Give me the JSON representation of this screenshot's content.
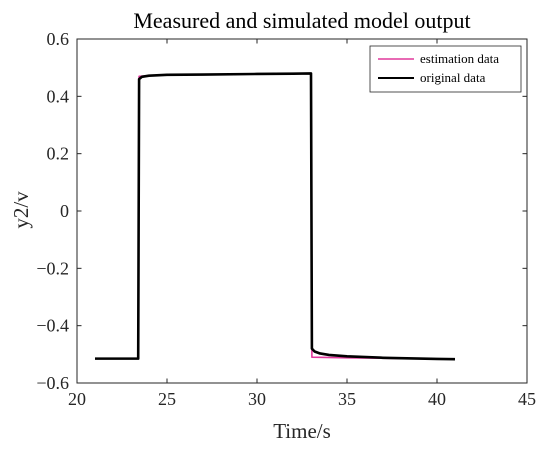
{
  "chart_data": {
    "type": "line",
    "title": "Measured and simulated model output",
    "xlabel": "Time/s",
    "ylabel": "y2/v",
    "xlim": [
      20,
      45
    ],
    "ylim": [
      -0.6,
      0.6
    ],
    "xticks": [
      20,
      25,
      30,
      35,
      40,
      45
    ],
    "yticks": [
      -0.6,
      -0.4,
      -0.2,
      0,
      0.2,
      0.4,
      0.6
    ],
    "xtick_labels": [
      "20",
      "25",
      "30",
      "35",
      "40",
      "45"
    ],
    "ytick_labels": [
      "−0.6",
      "−0.4",
      "−0.2",
      "0",
      "0.2",
      "0.4",
      "0.6"
    ],
    "grid": false,
    "legend_position": "top-right",
    "series": [
      {
        "name": "estimation data",
        "color": "#e0389c",
        "x": [
          21.0,
          23.4,
          23.45,
          25.0,
          30.0,
          33.0,
          33.05,
          35.0,
          40.0,
          41.0
        ],
        "y": [
          -0.515,
          -0.515,
          0.47,
          0.475,
          0.478,
          0.48,
          -0.51,
          -0.512,
          -0.516,
          -0.517
        ]
      },
      {
        "name": "original data",
        "color": "#000000",
        "x": [
          21.0,
          23.4,
          23.45,
          23.6,
          24.0,
          25.0,
          27.0,
          30.0,
          32.0,
          33.0,
          33.05,
          33.2,
          33.5,
          34.0,
          35.0,
          37.0,
          40.0,
          41.0
        ],
        "y": [
          -0.515,
          -0.515,
          0.46,
          0.468,
          0.472,
          0.475,
          0.476,
          0.478,
          0.479,
          0.48,
          -0.48,
          -0.49,
          -0.497,
          -0.502,
          -0.507,
          -0.512,
          -0.516,
          -0.517
        ]
      }
    ]
  }
}
